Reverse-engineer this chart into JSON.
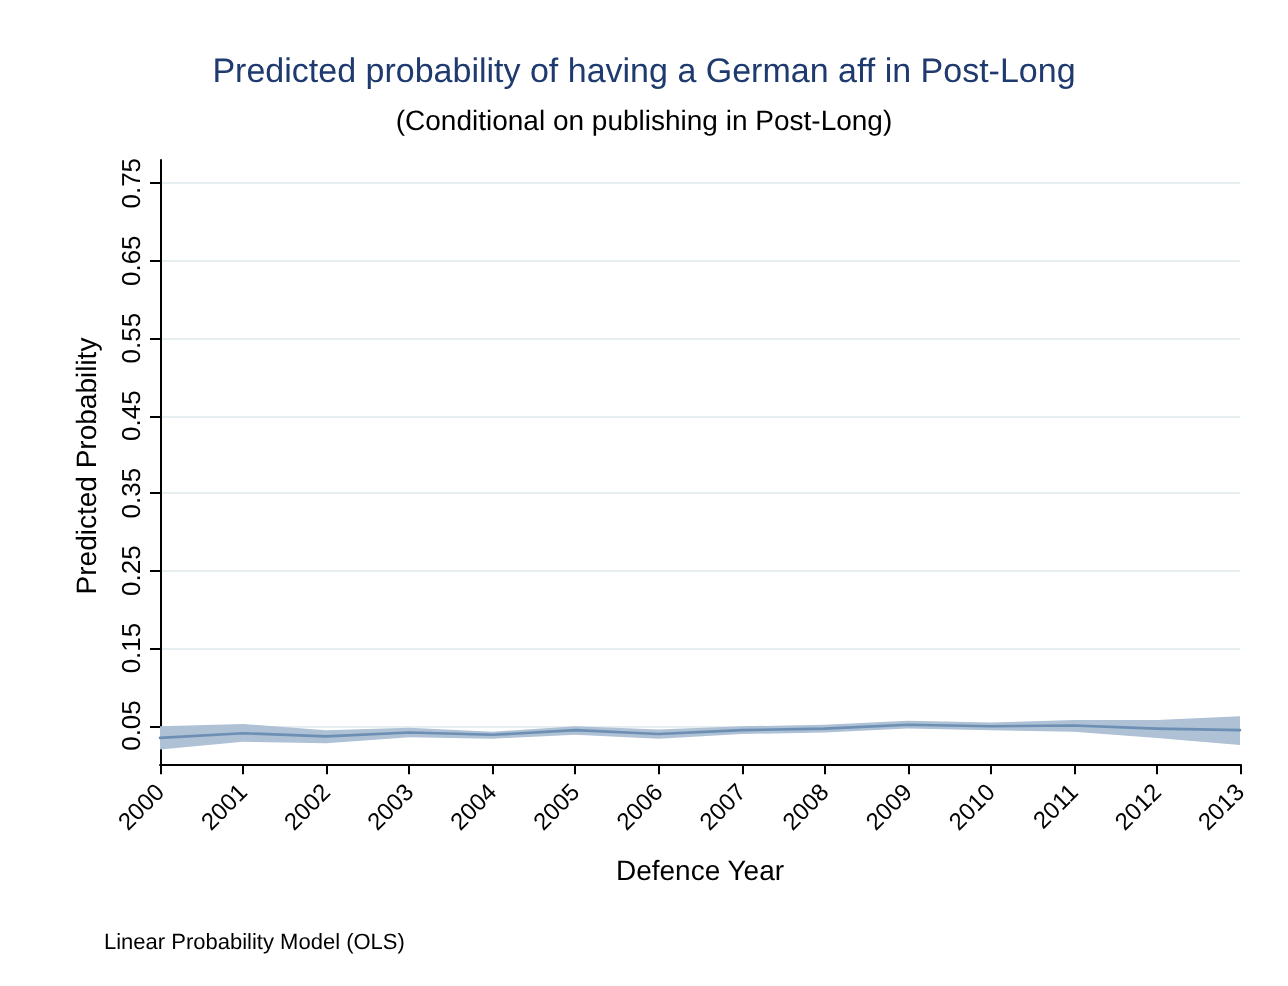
{
  "chart_data": {
    "type": "line",
    "title": "Predicted probability of having a German aff in Post-Long",
    "subtitle": "(Conditional on publishing in Post-Long)",
    "xlabel": "Defence Year",
    "ylabel": "Predicted Probability",
    "annotations": [
      "Linear Probability Model (OLS)"
    ],
    "categories": [
      "2000",
      "2001",
      "2002",
      "2003",
      "2004",
      "2005",
      "2006",
      "2007",
      "2008",
      "2009",
      "2010",
      "2011",
      "2012",
      "2013"
    ],
    "series": [
      {
        "color": "#6c8fb3",
        "values": [
          0.034,
          0.04,
          0.036,
          0.041,
          0.038,
          0.044,
          0.039,
          0.044,
          0.046,
          0.051,
          0.049,
          0.05,
          0.046,
          0.044
        ],
        "lower": [
          0.019,
          0.029,
          0.027,
          0.035,
          0.033,
          0.038,
          0.033,
          0.039,
          0.041,
          0.046,
          0.044,
          0.042,
          0.034,
          0.025
        ],
        "upper": [
          0.049,
          0.052,
          0.044,
          0.047,
          0.042,
          0.049,
          0.045,
          0.049,
          0.051,
          0.056,
          0.054,
          0.057,
          0.057,
          0.062
        ]
      }
    ],
    "ylim": [
      -0.01,
      0.78
    ],
    "yticks": [
      0.05,
      0.15,
      0.25,
      0.35,
      0.45,
      0.55,
      0.65,
      0.75
    ],
    "grid": "y",
    "marker": "none",
    "line_style": "solid"
  }
}
